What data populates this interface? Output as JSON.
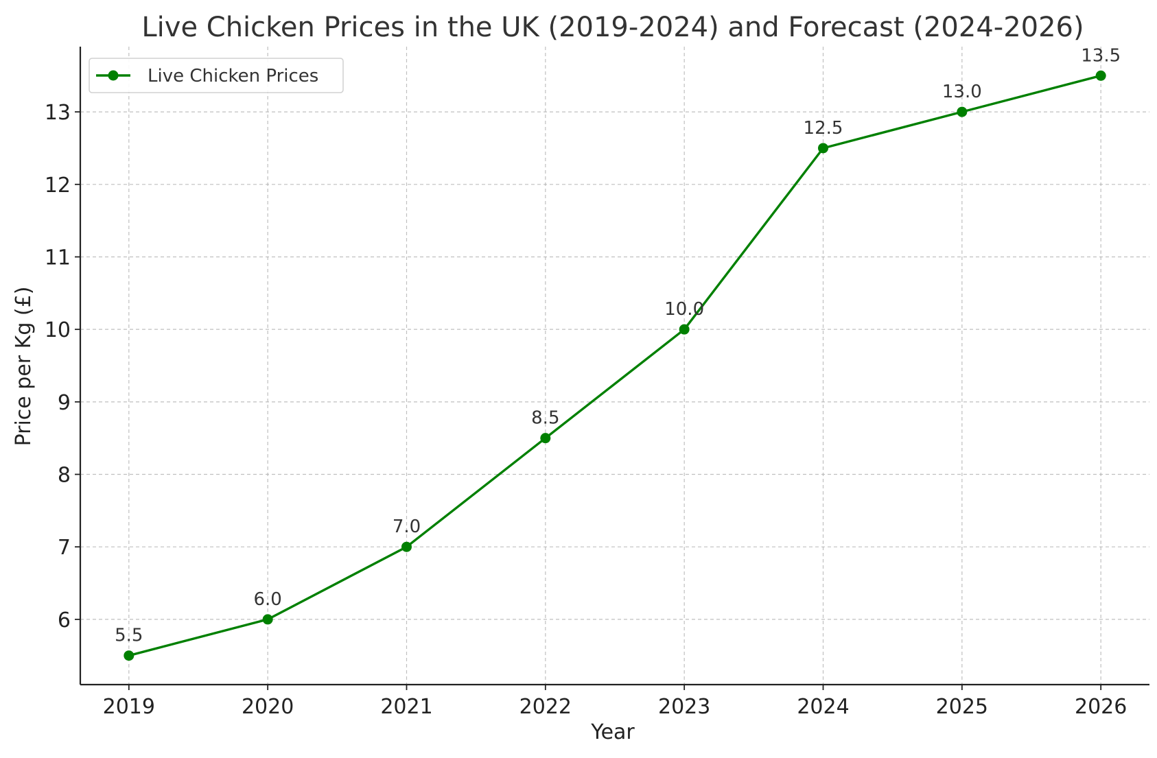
{
  "chart_data": {
    "type": "line",
    "title": "Live Chicken Prices in the UK (2019-2024) and Forecast (2024-2026)",
    "xlabel": "Year",
    "ylabel": "Price per Kg (£)",
    "x": [
      2019,
      2020,
      2021,
      2022,
      2023,
      2024,
      2025,
      2026
    ],
    "xtick_labels": [
      "2019",
      "2020",
      "2021",
      "2022",
      "2023",
      "2024",
      "2025",
      "2026"
    ],
    "yticks": [
      6,
      7,
      8,
      9,
      10,
      11,
      12,
      13
    ],
    "ytick_labels": [
      "6",
      "7",
      "8",
      "9",
      "10",
      "11",
      "12",
      "13"
    ],
    "xlim": [
      2018.65,
      2026.35
    ],
    "ylim": [
      5.1,
      13.9
    ],
    "grid": true,
    "grid_style": "dashed",
    "legend_position": "top-left",
    "series": [
      {
        "name": "Live Chicken Prices",
        "color": "#008000",
        "marker": "circle",
        "values": [
          5.5,
          6.0,
          7.0,
          8.5,
          10.0,
          12.5,
          13.0,
          13.5
        ],
        "data_labels": [
          "5.5",
          "6.0",
          "7.0",
          "8.5",
          "10.0",
          "12.5",
          "13.0",
          "13.5"
        ]
      }
    ]
  }
}
